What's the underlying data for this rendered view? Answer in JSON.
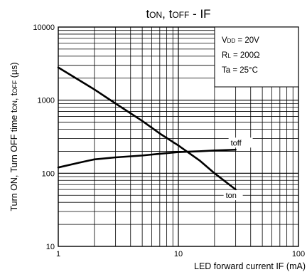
{
  "chart_data": {
    "type": "line",
    "title": "tON, tOFF - IF",
    "xlabel": "LED forward current IF (mA)",
    "ylabel": "Turn ON, Turn OFF time tON, tOFF (µs)",
    "x_scale": "log",
    "y_scale": "log",
    "xlim": [
      1,
      100
    ],
    "ylim": [
      10,
      10000
    ],
    "x_ticks": [
      "1",
      "10",
      "100"
    ],
    "y_ticks": [
      "10",
      "100",
      "1000",
      "10000"
    ],
    "grid": true,
    "conditions": [
      "VDD = 20V",
      "RL = 200Ω",
      "Ta = 25°C"
    ],
    "conditions_placement": "top-right",
    "series": [
      {
        "name": "toff",
        "x": [
          1,
          1.5,
          2,
          3,
          5,
          7,
          10,
          15,
          20,
          30
        ],
        "values": [
          120,
          140,
          155,
          165,
          175,
          185,
          195,
          200,
          205,
          210
        ]
      },
      {
        "name": "ton",
        "x": [
          1,
          2,
          3,
          5,
          7,
          10,
          15,
          20,
          30
        ],
        "values": [
          2800,
          1400,
          900,
          520,
          350,
          240,
          150,
          100,
          60
        ]
      }
    ]
  }
}
